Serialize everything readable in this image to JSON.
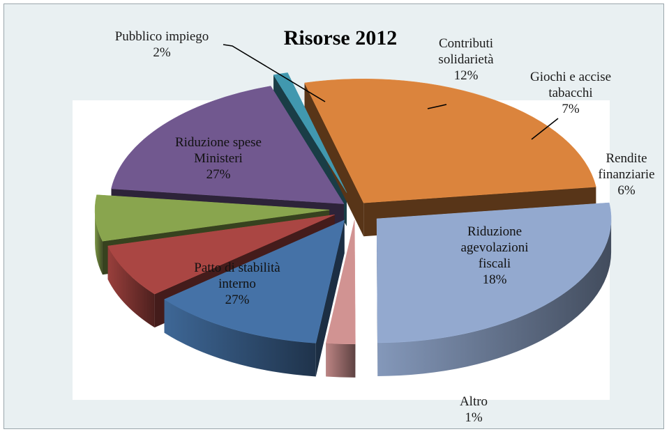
{
  "chart_data": {
    "type": "pie",
    "title": "Risorse 2012",
    "slices": [
      {
        "label": [
          "Contributi",
          "solidarietà"
        ],
        "value": 12,
        "pct": "12%",
        "color": "#4572a7"
      },
      {
        "label": [
          "Giochi e accise",
          "tabacchi"
        ],
        "value": 7,
        "pct": "7%",
        "color": "#aa4643"
      },
      {
        "label": [
          "Rendite",
          "finanziarie"
        ],
        "value": 6,
        "pct": "6%",
        "color": "#89a54e"
      },
      {
        "label": [
          "Riduzione",
          "agevolazioni",
          "fiscali"
        ],
        "value": 18,
        "pct": "18%",
        "color": "#71588f"
      },
      {
        "label": [
          "Altro"
        ],
        "value": 1,
        "pct": "1%",
        "color": "#4198af"
      },
      {
        "label": [
          "Patto di stabilità",
          "interno"
        ],
        "value": 27,
        "pct": "27%",
        "color": "#db843d"
      },
      {
        "label": [
          "Riduzione spese",
          "Ministeri"
        ],
        "value": 27,
        "pct": "27%",
        "color": "#93a9cf"
      },
      {
        "label": [
          "Pubblico impiego"
        ],
        "value": 2,
        "pct": "2%",
        "color": "#d19392"
      }
    ],
    "legend": "none",
    "labels_position": "mixed-inside-outside"
  }
}
